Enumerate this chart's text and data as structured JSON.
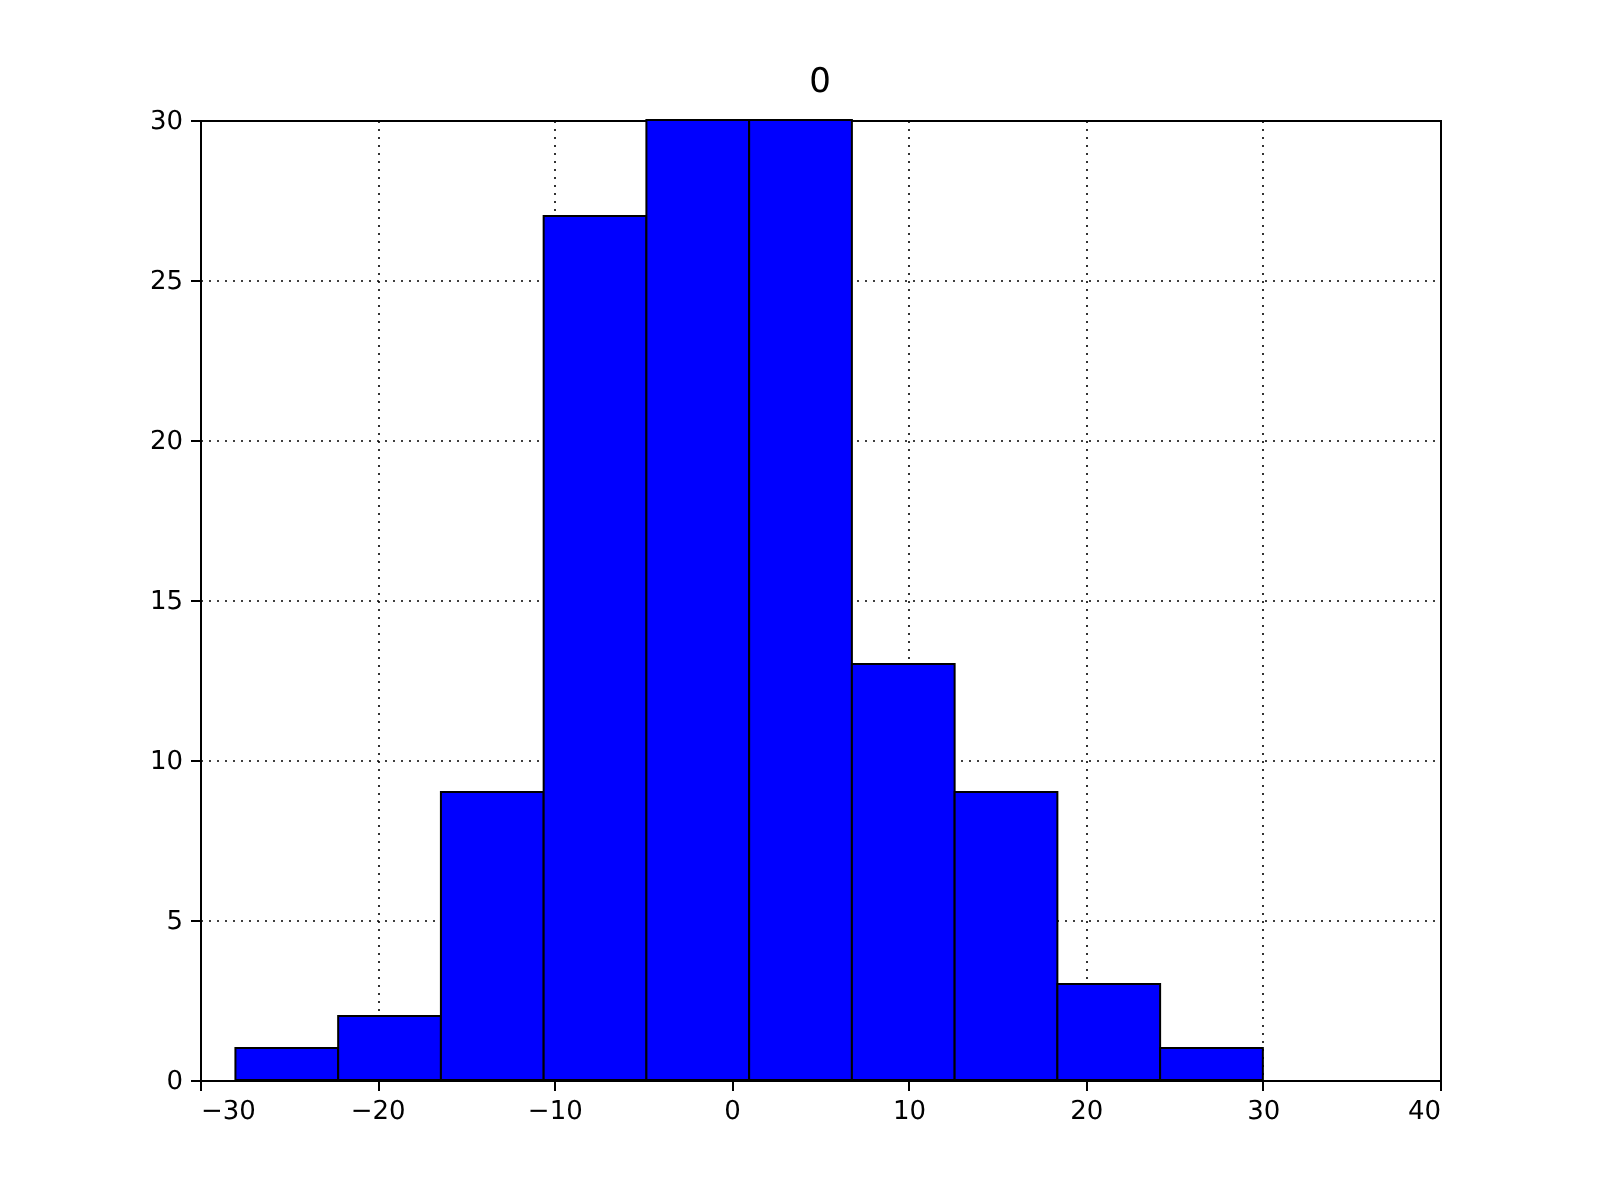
{
  "chart_data": {
    "type": "histogram",
    "title": "0",
    "bins": [
      -28.0,
      -22.2,
      -16.4,
      -10.6,
      -4.8,
      1.0,
      6.8,
      12.6,
      18.4,
      24.2,
      30.0
    ],
    "values": [
      1,
      2,
      9,
      27,
      30,
      30,
      13,
      9,
      3,
      1
    ],
    "color": "#0000ff",
    "xlim": [
      -30,
      40
    ],
    "xticks": [
      -30,
      -20,
      -10,
      0,
      10,
      20,
      30,
      40
    ],
    "ylim": [
      0,
      30
    ],
    "yticks": [
      0,
      5,
      10,
      15,
      20,
      25,
      30
    ],
    "grid": true
  }
}
